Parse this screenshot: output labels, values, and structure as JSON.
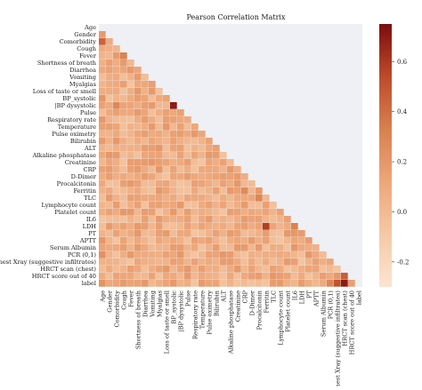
{
  "chart_data": {
    "type": "heatmap",
    "title": "Pearson Correlation Matrix",
    "variables": [
      "Age",
      "Gender",
      "Comorbidity",
      "Cough",
      "Fever",
      "Shortness of breath",
      "Diarrhea",
      "Vomiting",
      "Myalgias",
      "Loss of taste or smell",
      "BP_systolic",
      "|BP dysystolic",
      "Pulse",
      "Respiratory rate",
      "Temperature",
      "Pulse oximetry",
      "Bilirubin",
      "ALT",
      "Alkaline phosphatase",
      "Creatinine",
      "CRP",
      "D-Dimer",
      "Procalcitonin",
      "Ferritin",
      "TLC",
      "Lymphocyte count",
      "Platelet count",
      "IL6",
      "LDH",
      "PT",
      "APTT",
      "Serum Albumin",
      "PCR (0,1)",
      "Chest Xray (suggestive infiltrates)",
      "HRCT scan (chest)",
      "HRCT score out of 40",
      "label"
    ],
    "x_tick_labels": [
      "Age",
      "Gender",
      "Comorbidity",
      "Cough",
      "Fever",
      "Shortness of breath",
      "Diarrhea",
      "Vomiting",
      "Myalgias",
      "Loss of taste or smell",
      "BP_systolic",
      "|BP dysystolic",
      "Pulse",
      "Respiratory rate",
      "Temperature",
      "Pulse oximetry",
      "Bilirubin",
      "ALT",
      "Alkaline phosphatase",
      "Creatinine",
      "CRP",
      "D-Dimer",
      "Procalcitonin",
      "Ferritin",
      "TLC",
      "Lymphocyte count",
      "Platelet count",
      "IL6",
      "LDH",
      "PT",
      "APTT",
      "Serum Albumin",
      "PCR (0,1)",
      "Chest Xray (suggestive infiltrates)",
      "HRCT scan (chest)",
      "HRCT score out of 40",
      "label"
    ],
    "mask": "lower-triangle",
    "colorbar": {
      "ticks": [
        0.6,
        0.4,
        0.2,
        0.0,
        -0.2
      ],
      "tick_labels": [
        "0.6",
        "0.4",
        "0.2",
        "0.0",
        "-0.2"
      ],
      "range": [
        -0.3,
        0.75
      ],
      "colors": [
        "#fbe5d2",
        "#f5c9a6",
        "#eda679",
        "#d8804f",
        "#bd4b2b",
        "#7a0d0d"
      ]
    },
    "strong_cells": [
      {
        "row": "Comorbidity",
        "col": "Age",
        "value": 0.44
      },
      {
        "row": "Fever",
        "col": "Cough",
        "value": 0.31
      },
      {
        "row": "|BP dysystolic",
        "col": "BP_systolic",
        "value": 0.7
      },
      {
        "row": "BP_systolic",
        "col": "Age",
        "value": 0.21
      },
      {
        "row": "|BP dysystolic",
        "col": "Comorbidity",
        "value": 0.28
      },
      {
        "row": "Ferritin",
        "col": "CRP",
        "value": 0.27
      },
      {
        "row": "TLC",
        "col": "Procalcitonin",
        "value": 0.29
      },
      {
        "row": "TLC",
        "col": "Lymphocyte count",
        "value": 0.3
      },
      {
        "row": "LDH",
        "col": "Ferritin",
        "value": 0.58
      },
      {
        "row": "LDH",
        "col": "IL6",
        "value": 0.31
      },
      {
        "row": "label",
        "col": "HRCT scan (chest)",
        "value": 0.7
      },
      {
        "row": "label",
        "col": "Chest Xray (suggestive infiltrates)",
        "value": 0.51
      },
      {
        "row": "label",
        "col": "PCR (0,1)",
        "value": 0.29
      },
      {
        "row": "HRCT score out of 40",
        "col": "HRCT scan (chest)",
        "value": 0.46
      },
      {
        "row": "PCR (0,1)",
        "col": "Age",
        "value": 0.24
      },
      {
        "row": "label",
        "col": "Age",
        "value": 0.22
      }
    ]
  }
}
